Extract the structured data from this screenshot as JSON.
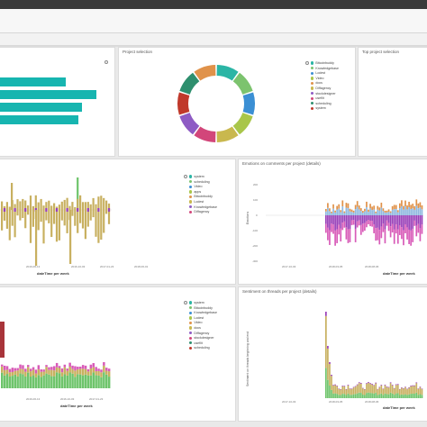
{
  "panels": {
    "project_selection": {
      "title": "Project selection"
    },
    "top_project_selection": {
      "title": "Top project selection"
    },
    "emotions_comments": {
      "title": "Emotions on comments per project (details)"
    },
    "sentiment_threads": {
      "title": "Sentiment on threads per project (details)"
    }
  },
  "legend_projects": [
    "Bitcoinbuddy",
    "Knowledgebase",
    "Lodest",
    "Video",
    "docs",
    "Diffagency",
    "stockdesigner",
    "useflit",
    "scheduling",
    "system"
  ],
  "legend_emotions": [
    "system",
    "scheduling",
    "Video",
    "apps",
    "Bitcoinbuddy",
    "Lodest",
    "Knowledgebase",
    "Diffagency"
  ],
  "legend_sentiment": [
    "system",
    "Bitcoinbuddy",
    "Knowledgebase",
    "Lodest",
    "Video",
    "docs",
    "Diffagency",
    "stockdesigner",
    "useflit",
    "scheduling"
  ],
  "axes": {
    "xlabel_week": "dateTime per week",
    "ylabel_emotions": "Emotions",
    "ylabel_sentiment": "Sentiment on threads beginning and end",
    "ticks_mid_left": [
      "2016-06-13",
      "2016-10-03",
      "2017-01-23",
      "2018-06-01"
    ],
    "ticks_mid_right": [
      "2017-10-03",
      "2018-03-05",
      "2018-08-06"
    ],
    "ticks_bot_left": [
      "2016-06-13",
      "2016-10-03",
      "2017-01-23"
    ],
    "ticks_bot_right": [
      "2017-10-03",
      "2018-03-05",
      "2018-08-06"
    ],
    "ytick_emotions": [
      "200",
      "100",
      "0",
      "-100",
      "-200",
      "-300"
    ]
  },
  "colors": {
    "projects": [
      "#2bb5a5",
      "#7cc36e",
      "#3b8fd4",
      "#a9c64a",
      "#e0924a",
      "#c9b84e",
      "#8e5bc4",
      "#d2467a",
      "#2e8f6e",
      "#c0392b"
    ],
    "teal": "#17b5b0",
    "tan": "#c8b060",
    "purple": "#9a3fb8",
    "pink": "#d85bb8",
    "green": "#6ec46b",
    "orange": "#e0924a",
    "lightblue": "#8fb8df",
    "darkred": "#a8343a"
  }
}
